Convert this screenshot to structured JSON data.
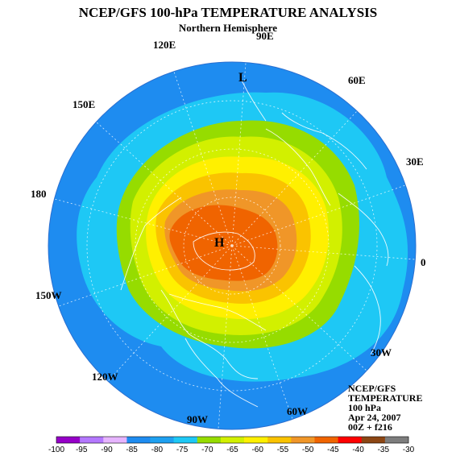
{
  "header": {
    "title": "NCEP/GFS 100-hPa TEMPERATURE ANALYSIS",
    "subtitle": "Northern Hemisphere"
  },
  "map": {
    "longitude_labels": [
      "90E",
      "60E",
      "30E",
      "0",
      "30W",
      "60W",
      "90W",
      "120W",
      "150W",
      "180",
      "150E",
      "120E"
    ],
    "markers": {
      "high": "H",
      "low": "L"
    },
    "colors": {
      "ocean_ring": "#1e8cf0",
      "cold_ring": "#1ec8f5",
      "band_m70": "#96dc00",
      "band_m65": "#d2f000",
      "band_m60": "#fff000",
      "band_m55": "#fac300",
      "band_m50": "#f09628",
      "band_m45": "#f06400"
    }
  },
  "info": {
    "line1": "NCEP/GFS",
    "line2": "TEMPERATURE",
    "line3": "100 hPa",
    "line4": "Apr 24, 2007",
    "line5": "00Z + f216"
  },
  "legend": {
    "ticks": [
      "-100",
      "-95",
      "-90",
      "-85",
      "-80",
      "-75",
      "-70",
      "-65",
      "-60",
      "-55",
      "-50",
      "-45",
      "-40",
      "-35",
      "-30"
    ],
    "colors": [
      "#9600c8",
      "#b478ff",
      "#e6b4ff",
      "#1e8cf0",
      "#1ea0f0",
      "#1ec8f5",
      "#96dc00",
      "#d2f000",
      "#fff000",
      "#fac300",
      "#f09628",
      "#f06400",
      "#ff0000",
      "#8c4614",
      "#7d7d7d"
    ]
  }
}
